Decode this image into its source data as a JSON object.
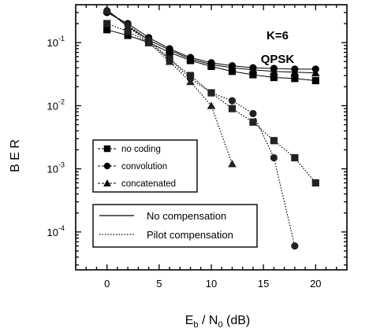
{
  "chart_data": {
    "type": "line",
    "xlabel": {
      "main": "E",
      "sub_b": "b",
      "slash": " / N",
      "sub_0": "0",
      "unit": " (dB)"
    },
    "ylabel": "B E R",
    "xlim": [
      -3,
      23
    ],
    "ylim_log10": [
      -4.6,
      -0.4
    ],
    "y_log_scale": true,
    "x_ticks": [
      {
        "value": 0,
        "label": "0"
      },
      {
        "value": 5,
        "label": "5"
      },
      {
        "value": 10,
        "label": "10"
      },
      {
        "value": 15,
        "label": "15"
      },
      {
        "value": 20,
        "label": "20"
      }
    ],
    "y_ticks": [
      {
        "exp": -1,
        "base": "10",
        "sup": "-1"
      },
      {
        "exp": -2,
        "base": "10",
        "sup": "-2"
      },
      {
        "exp": -3,
        "base": "10",
        "sup": "-3"
      },
      {
        "exp": -4,
        "base": "10",
        "sup": "-4"
      }
    ],
    "annotations": [
      "K=6",
      "QPSK"
    ],
    "series": [
      {
        "name": "no coding",
        "marker": "square",
        "line": "solid",
        "x": [
          0,
          2,
          4,
          6,
          8,
          10,
          12,
          14,
          16,
          18,
          20
        ],
        "y": [
          0.16,
          0.13,
          0.1,
          0.07,
          0.052,
          0.042,
          0.035,
          0.031,
          0.028,
          0.027,
          0.025
        ]
      },
      {
        "name": "convolution",
        "marker": "circle",
        "line": "solid",
        "x": [
          0,
          2,
          4,
          6,
          8,
          10,
          12,
          14,
          16,
          18,
          20
        ],
        "y": [
          0.3,
          0.2,
          0.12,
          0.08,
          0.058,
          0.048,
          0.043,
          0.04,
          0.039,
          0.038,
          0.038
        ]
      },
      {
        "name": "concatenated",
        "marker": "triangle",
        "line": "solid",
        "x": [
          0,
          2,
          4,
          6,
          8,
          10,
          12,
          14,
          16,
          18,
          20
        ],
        "y": [
          0.33,
          0.18,
          0.11,
          0.076,
          0.055,
          0.045,
          0.04,
          0.037,
          0.035,
          0.034,
          0.033
        ]
      },
      {
        "name": "no coding",
        "marker": "square",
        "line": "dotted",
        "x": [
          0,
          2,
          4,
          6,
          8,
          10,
          12,
          14,
          16,
          18,
          20
        ],
        "y": [
          0.2,
          0.15,
          0.1,
          0.055,
          0.03,
          0.016,
          0.009,
          0.0055,
          0.0028,
          0.0015,
          0.0006
        ]
      },
      {
        "name": "convolution",
        "marker": "circle",
        "line": "dotted",
        "x": [
          0,
          2,
          4,
          6,
          8,
          10,
          12,
          14,
          16,
          18
        ],
        "y": [
          0.32,
          0.19,
          0.11,
          0.055,
          0.027,
          0.016,
          0.012,
          0.0075,
          0.0015,
          6e-05
        ]
      },
      {
        "name": "concatenated",
        "marker": "triangle",
        "line": "dotted",
        "x": [
          0,
          2,
          4,
          6,
          8,
          10,
          12
        ],
        "y": [
          0.32,
          0.18,
          0.1,
          0.05,
          0.024,
          0.01,
          0.0012
        ]
      }
    ],
    "legend_markers": [
      {
        "label": "no coding",
        "marker": "square"
      },
      {
        "label": "convolution",
        "marker": "circle"
      },
      {
        "label": "concatenated",
        "marker": "triangle"
      }
    ],
    "legend_lines": [
      {
        "label": "No compensation",
        "line": "solid"
      },
      {
        "label": "Pilot compensation",
        "line": "dotted"
      }
    ]
  }
}
